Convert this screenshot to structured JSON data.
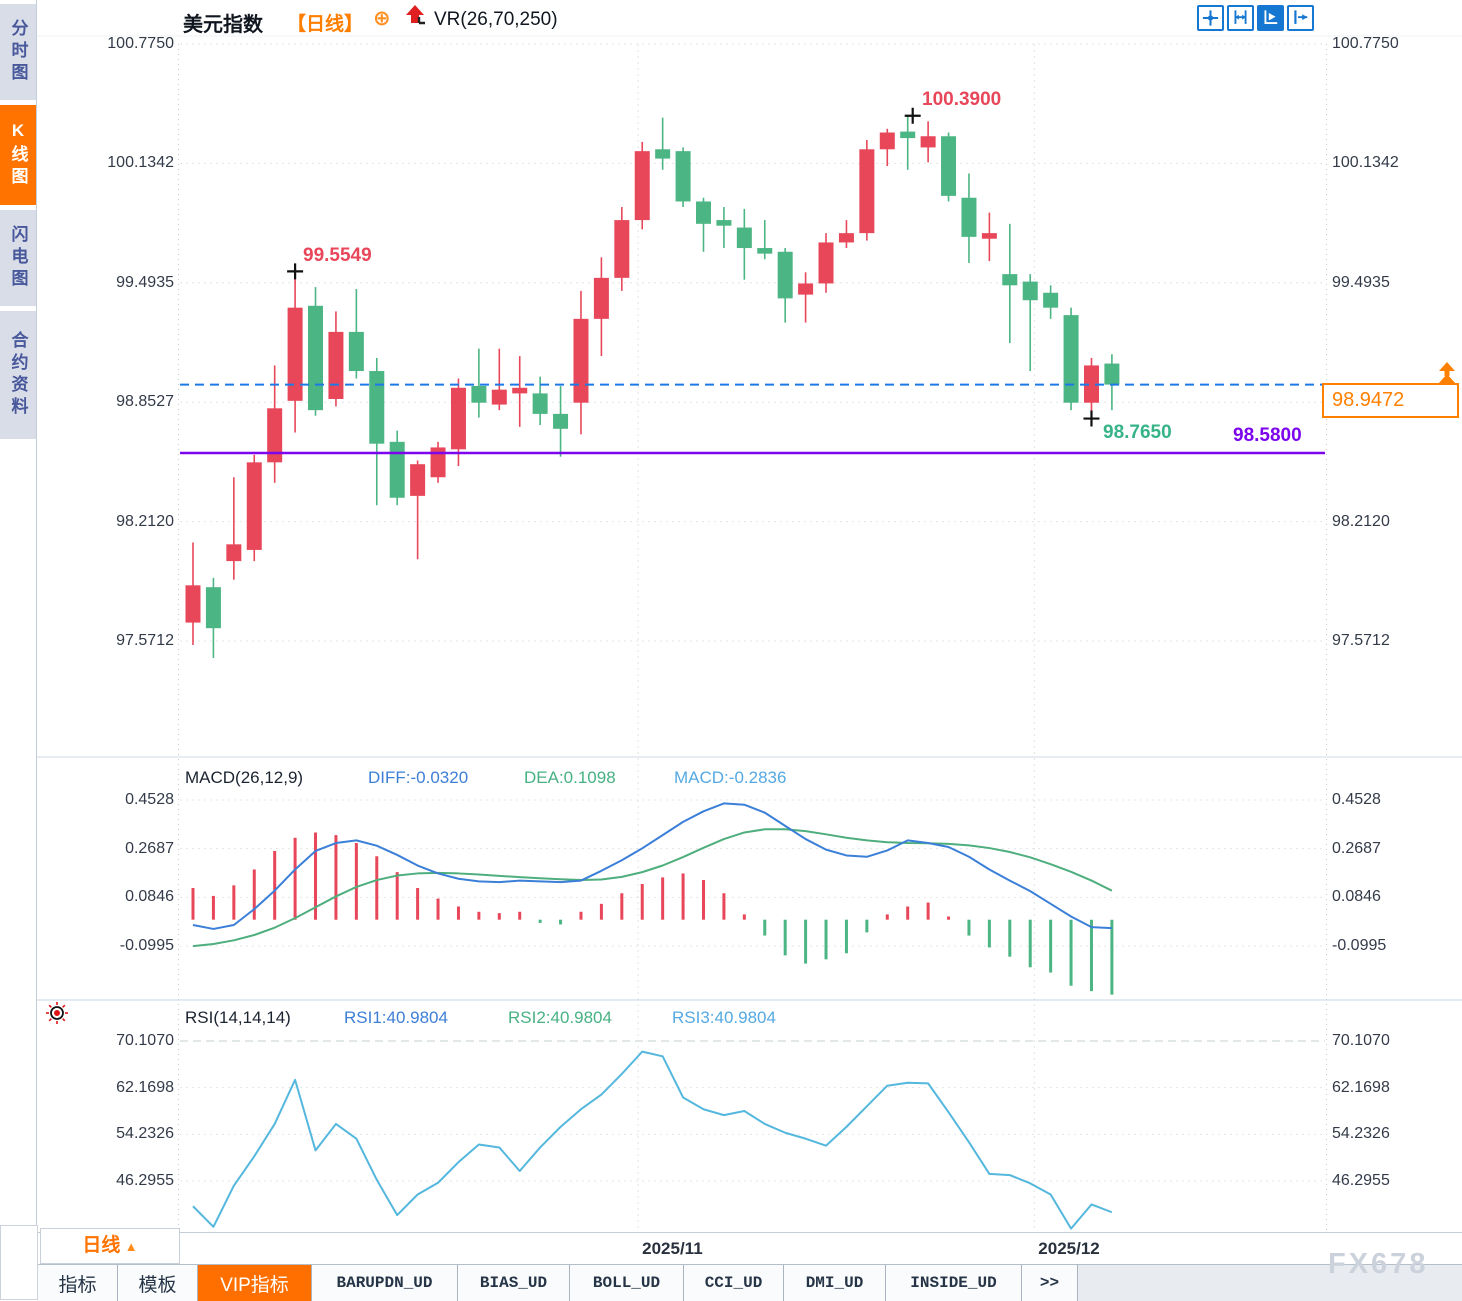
{
  "header": {
    "symbol": "美元指数",
    "period_tag": "【日线】",
    "target_icon": "⊕",
    "vr_label": "VR(26,70,250)"
  },
  "toolbar": {
    "icons": [
      {
        "name": "move-crosshair-icon",
        "active": false
      },
      {
        "name": "axis-range-icon",
        "active": false
      },
      {
        "name": "axis-play-icon",
        "active": true
      },
      {
        "name": "exit-right-icon",
        "active": false
      }
    ]
  },
  "sidebar": {
    "items": [
      {
        "label": "分时图",
        "active": false
      },
      {
        "label": "K线图",
        "active": true
      },
      {
        "label": "闪电图",
        "active": false
      },
      {
        "label": "合约资料",
        "active": false
      }
    ]
  },
  "price_panel": {
    "annotations": {
      "high1": {
        "text": "99.5549"
      },
      "high2": {
        "text": "100.3900"
      },
      "low": {
        "text": "98.7650"
      },
      "support": {
        "text": "98.5800"
      }
    },
    "last_price_box": {
      "text": "98.9472"
    }
  },
  "macd_panel": {
    "title": "MACD(26,12,9)",
    "diff_label": "DIFF:-0.0320",
    "dea_label": "DEA:0.1098",
    "macd_label": "MACD:-0.2836"
  },
  "rsi_panel": {
    "title": "RSI(14,14,14)",
    "rsi1_label": "RSI1:40.9804",
    "rsi2_label": "RSI2:40.9804",
    "rsi3_label": "RSI3:40.9804"
  },
  "bottom_bar": {
    "period_selector": {
      "label": "日线",
      "arrow": "▲"
    },
    "tabs": [
      {
        "label": "指标",
        "type": "cjk",
        "active": false
      },
      {
        "label": "模板",
        "type": "cjk",
        "active": false
      },
      {
        "label": "VIP指标",
        "type": "cjk",
        "active": true
      },
      {
        "label": "BARUPDN_UD",
        "type": "mono",
        "active": false
      },
      {
        "label": "BIAS_UD",
        "type": "mono",
        "active": false
      },
      {
        "label": "BOLL_UD",
        "type": "mono",
        "active": false
      },
      {
        "label": "CCI_UD",
        "type": "mono",
        "active": false
      },
      {
        "label": "DMI_UD",
        "type": "mono",
        "active": false
      },
      {
        "label": "INSIDE_UD",
        "type": "mono",
        "active": false
      },
      {
        "label": ">>",
        "type": "mono",
        "active": false
      }
    ]
  },
  "watermark": "FX678",
  "colors": {
    "up": "#e8475a",
    "down": "#4bb583",
    "diff_line": "#3b7fd8",
    "dea_line": "#4fae7d",
    "rsi_line": "#54b7dd",
    "last_price_line": "#1d79e8",
    "support_line": "#7c05ee",
    "accent_orange": "#ff7300",
    "toolbar_blue": "#1677d2"
  },
  "chart_data": {
    "type": "candlestick",
    "title": "美元指数 日线",
    "price_axis": {
      "max": 100.775,
      "min": 97.5712,
      "labels": [
        "100.7750",
        "100.1342",
        "99.4935",
        "98.8527",
        "98.2120",
        "97.5712"
      ]
    },
    "candles": [
      [
        97.67,
        98.1,
        97.55,
        97.87
      ],
      [
        97.86,
        97.91,
        97.48,
        97.64
      ],
      [
        98.0,
        98.45,
        97.9,
        98.09
      ],
      [
        98.06,
        98.57,
        98.0,
        98.53
      ],
      [
        98.53,
        99.05,
        98.42,
        98.82
      ],
      [
        98.86,
        99.5549,
        98.69,
        99.36
      ],
      [
        99.37,
        99.47,
        98.78,
        98.81
      ],
      [
        98.87,
        99.34,
        98.83,
        99.23
      ],
      [
        99.23,
        99.46,
        98.98,
        99.02
      ],
      [
        99.02,
        99.09,
        98.3,
        98.63
      ],
      [
        98.64,
        98.7,
        98.3,
        98.34
      ],
      [
        98.35,
        98.54,
        98.01,
        98.52
      ],
      [
        98.45,
        98.64,
        98.42,
        98.61
      ],
      [
        98.6,
        98.98,
        98.51,
        98.93
      ],
      [
        98.94,
        99.14,
        98.77,
        98.85
      ],
      [
        98.84,
        99.14,
        98.81,
        98.92
      ],
      [
        98.9,
        99.1,
        98.72,
        98.93
      ],
      [
        98.9,
        98.99,
        98.73,
        98.79
      ],
      [
        98.79,
        98.94,
        98.56,
        98.71
      ],
      [
        98.85,
        99.45,
        98.68,
        99.3
      ],
      [
        99.3,
        99.63,
        99.1,
        99.52
      ],
      [
        99.52,
        99.9,
        99.45,
        99.83
      ],
      [
        99.83,
        100.25,
        99.78,
        100.2
      ],
      [
        100.21,
        100.38,
        100.1,
        100.16
      ],
      [
        100.2,
        100.22,
        99.9,
        99.93
      ],
      [
        99.93,
        99.95,
        99.66,
        99.81
      ],
      [
        99.83,
        99.9,
        99.68,
        99.8
      ],
      [
        99.79,
        99.89,
        99.51,
        99.68
      ],
      [
        99.68,
        99.83,
        99.62,
        99.65
      ],
      [
        99.66,
        99.68,
        99.28,
        99.41
      ],
      [
        99.43,
        99.55,
        99.28,
        99.49
      ],
      [
        99.49,
        99.76,
        99.44,
        99.71
      ],
      [
        99.71,
        99.83,
        99.68,
        99.76
      ],
      [
        99.76,
        100.26,
        99.72,
        100.21
      ],
      [
        100.21,
        100.32,
        100.12,
        100.3
      ],
      [
        100.305,
        100.39,
        100.1,
        100.27
      ],
      [
        100.22,
        100.36,
        100.14,
        100.28
      ],
      [
        100.28,
        100.3,
        99.93,
        99.96
      ],
      [
        99.95,
        100.08,
        99.6,
        99.74
      ],
      [
        99.73,
        99.87,
        99.61,
        99.76
      ],
      [
        99.54,
        99.81,
        99.17,
        99.48
      ],
      [
        99.5,
        99.54,
        99.02,
        99.4
      ],
      [
        99.44,
        99.48,
        99.3,
        99.36
      ],
      [
        99.32,
        99.36,
        98.81,
        98.85
      ],
      [
        98.85,
        99.09,
        98.765,
        99.05
      ],
      [
        99.06,
        99.11,
        98.81,
        98.9472
      ]
    ],
    "markers": {
      "high1": {
        "index": 5,
        "price": 99.5549
      },
      "high2": {
        "index": 35,
        "price": 100.39
      },
      "low": {
        "index": 44,
        "price": 98.765
      }
    },
    "lines": {
      "last_price": 98.9472,
      "support": 98.58
    },
    "macd": {
      "max": 0.4528,
      "min": -0.0995,
      "labels": [
        "0.4528",
        "0.2687",
        "0.0846",
        "-0.0995"
      ],
      "diff": [
        -0.02,
        -0.035,
        -0.02,
        0.04,
        0.11,
        0.19,
        0.26,
        0.29,
        0.3,
        0.28,
        0.245,
        0.205,
        0.175,
        0.155,
        0.145,
        0.142,
        0.148,
        0.145,
        0.142,
        0.148,
        0.185,
        0.225,
        0.27,
        0.32,
        0.37,
        0.41,
        0.44,
        0.435,
        0.405,
        0.355,
        0.305,
        0.265,
        0.243,
        0.238,
        0.262,
        0.3,
        0.29,
        0.275,
        0.238,
        0.19,
        0.148,
        0.108,
        0.06,
        0.012,
        -0.028,
        -0.032
      ],
      "dea": [
        -0.1,
        -0.092,
        -0.078,
        -0.058,
        -0.03,
        0.006,
        0.047,
        0.088,
        0.124,
        0.15,
        0.167,
        0.175,
        0.177,
        0.175,
        0.171,
        0.166,
        0.161,
        0.157,
        0.153,
        0.15,
        0.152,
        0.162,
        0.18,
        0.205,
        0.237,
        0.272,
        0.305,
        0.33,
        0.342,
        0.342,
        0.335,
        0.323,
        0.31,
        0.3,
        0.293,
        0.29,
        0.289,
        0.287,
        0.281,
        0.271,
        0.256,
        0.236,
        0.21,
        0.181,
        0.148,
        0.1098
      ],
      "hist": [
        0.12,
        0.09,
        0.13,
        0.19,
        0.26,
        0.31,
        0.33,
        0.32,
        0.29,
        0.24,
        0.18,
        0.12,
        0.08,
        0.05,
        0.03,
        0.025,
        0.03,
        -0.012,
        -0.018,
        0.03,
        0.06,
        0.1,
        0.135,
        0.16,
        0.175,
        0.15,
        0.1,
        0.02,
        -0.06,
        -0.135,
        -0.166,
        -0.15,
        -0.127,
        -0.048,
        0.02,
        0.05,
        0.065,
        0.012,
        -0.06,
        -0.105,
        -0.14,
        -0.18,
        -0.2,
        -0.25,
        -0.27,
        -0.2836
      ]
    },
    "rsi": {
      "max": 70.107,
      "min": 46.2955,
      "labels": [
        "70.1070",
        "62.1698",
        "54.2326",
        "46.2955"
      ],
      "values": [
        42.0,
        38.5,
        45.5,
        50.5,
        56.0,
        63.5,
        51.5,
        56.0,
        53.5,
        46.5,
        40.5,
        44.0,
        46.0,
        49.5,
        52.5,
        52.0,
        48.0,
        52.0,
        55.5,
        58.5,
        61.0,
        64.5,
        68.3,
        67.5,
        60.5,
        58.5,
        57.5,
        58.2,
        56.0,
        54.5,
        53.5,
        52.3,
        55.5,
        59.0,
        62.5,
        63.0,
        62.9,
        58.0,
        52.9,
        47.5,
        47.3,
        45.9,
        44.0,
        38.2,
        42.3,
        40.9804
      ]
    },
    "x_labels": [
      {
        "text": "2025/11",
        "x_index": 21.8
      },
      {
        "text": "2025/12",
        "x_index": 41.2
      }
    ]
  }
}
